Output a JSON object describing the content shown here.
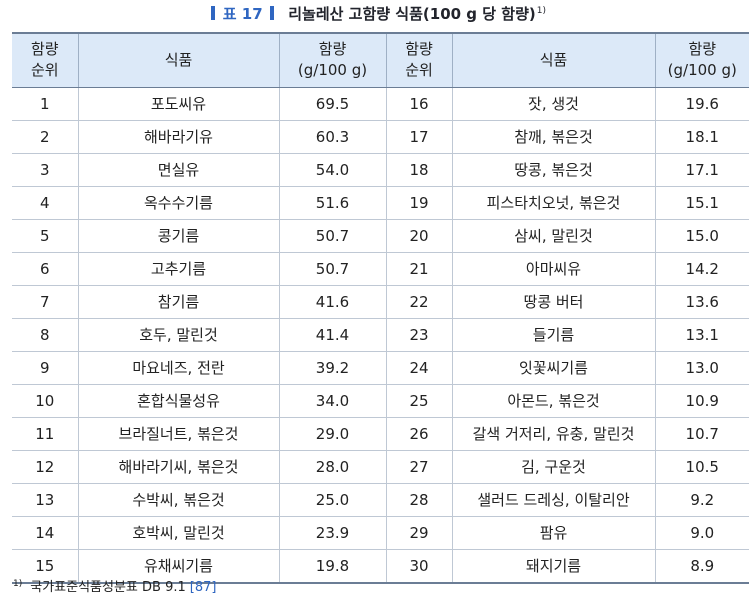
{
  "caption": {
    "label": "표 17",
    "title": "리놀레산 고함량 식품(100 g 당 함량)",
    "sup": "1)"
  },
  "table": {
    "headers": {
      "rank": [
        "함량",
        "순위"
      ],
      "food": "식품",
      "amount": [
        "함량",
        "(g/100 g)"
      ]
    },
    "rows": [
      {
        "left": {
          "rank": "1",
          "food": "포도씨유",
          "amount": "69.5"
        },
        "right": {
          "rank": "16",
          "food": "잣, 생것",
          "amount": "19.6"
        }
      },
      {
        "left": {
          "rank": "2",
          "food": "해바라기유",
          "amount": "60.3"
        },
        "right": {
          "rank": "17",
          "food": "참깨, 볶은것",
          "amount": "18.1"
        }
      },
      {
        "left": {
          "rank": "3",
          "food": "면실유",
          "amount": "54.0"
        },
        "right": {
          "rank": "18",
          "food": "땅콩, 볶은것",
          "amount": "17.1"
        }
      },
      {
        "left": {
          "rank": "4",
          "food": "옥수수기름",
          "amount": "51.6"
        },
        "right": {
          "rank": "19",
          "food": "피스타치오넛, 볶은것",
          "amount": "15.1"
        }
      },
      {
        "left": {
          "rank": "5",
          "food": "콩기름",
          "amount": "50.7"
        },
        "right": {
          "rank": "20",
          "food": "삼씨, 말린것",
          "amount": "15.0"
        }
      },
      {
        "left": {
          "rank": "6",
          "food": "고추기름",
          "amount": "50.7"
        },
        "right": {
          "rank": "21",
          "food": "아마씨유",
          "amount": "14.2"
        }
      },
      {
        "left": {
          "rank": "7",
          "food": "참기름",
          "amount": "41.6"
        },
        "right": {
          "rank": "22",
          "food": "땅콩 버터",
          "amount": "13.6"
        }
      },
      {
        "left": {
          "rank": "8",
          "food": "호두, 말린것",
          "amount": "41.4"
        },
        "right": {
          "rank": "23",
          "food": "들기름",
          "amount": "13.1"
        }
      },
      {
        "left": {
          "rank": "9",
          "food": "마요네즈, 전란",
          "amount": "39.2"
        },
        "right": {
          "rank": "24",
          "food": "잇꽃씨기름",
          "amount": "13.0"
        }
      },
      {
        "left": {
          "rank": "10",
          "food": "혼합식물성유",
          "amount": "34.0"
        },
        "right": {
          "rank": "25",
          "food": "아몬드, 볶은것",
          "amount": "10.9"
        }
      },
      {
        "left": {
          "rank": "11",
          "food": "브라질너트, 볶은것",
          "amount": "29.0"
        },
        "right": {
          "rank": "26",
          "food": "갈색 거저리, 유충, 말린것",
          "amount": "10.7"
        }
      },
      {
        "left": {
          "rank": "12",
          "food": "해바라기씨, 볶은것",
          "amount": "28.0"
        },
        "right": {
          "rank": "27",
          "food": "김, 구운것",
          "amount": "10.5"
        }
      },
      {
        "left": {
          "rank": "13",
          "food": "수박씨, 볶은것",
          "amount": "25.0"
        },
        "right": {
          "rank": "28",
          "food": "샐러드 드레싱, 이탈리안",
          "amount": "9.2"
        }
      },
      {
        "left": {
          "rank": "14",
          "food": "호박씨, 말린것",
          "amount": "23.9"
        },
        "right": {
          "rank": "29",
          "food": "팜유",
          "amount": "9.0"
        }
      },
      {
        "left": {
          "rank": "15",
          "food": "유채씨기름",
          "amount": "19.8"
        },
        "right": {
          "rank": "30",
          "food": "돼지기름",
          "amount": "8.9"
        }
      }
    ]
  },
  "footnote": {
    "mark": "1)",
    "text": "국가표준식품성분표 DB 9.1",
    "ref": "[87]"
  },
  "colors": {
    "header_bg": "#dce9f8",
    "accent": "#2f66c1",
    "rule": "#6b7d95"
  }
}
